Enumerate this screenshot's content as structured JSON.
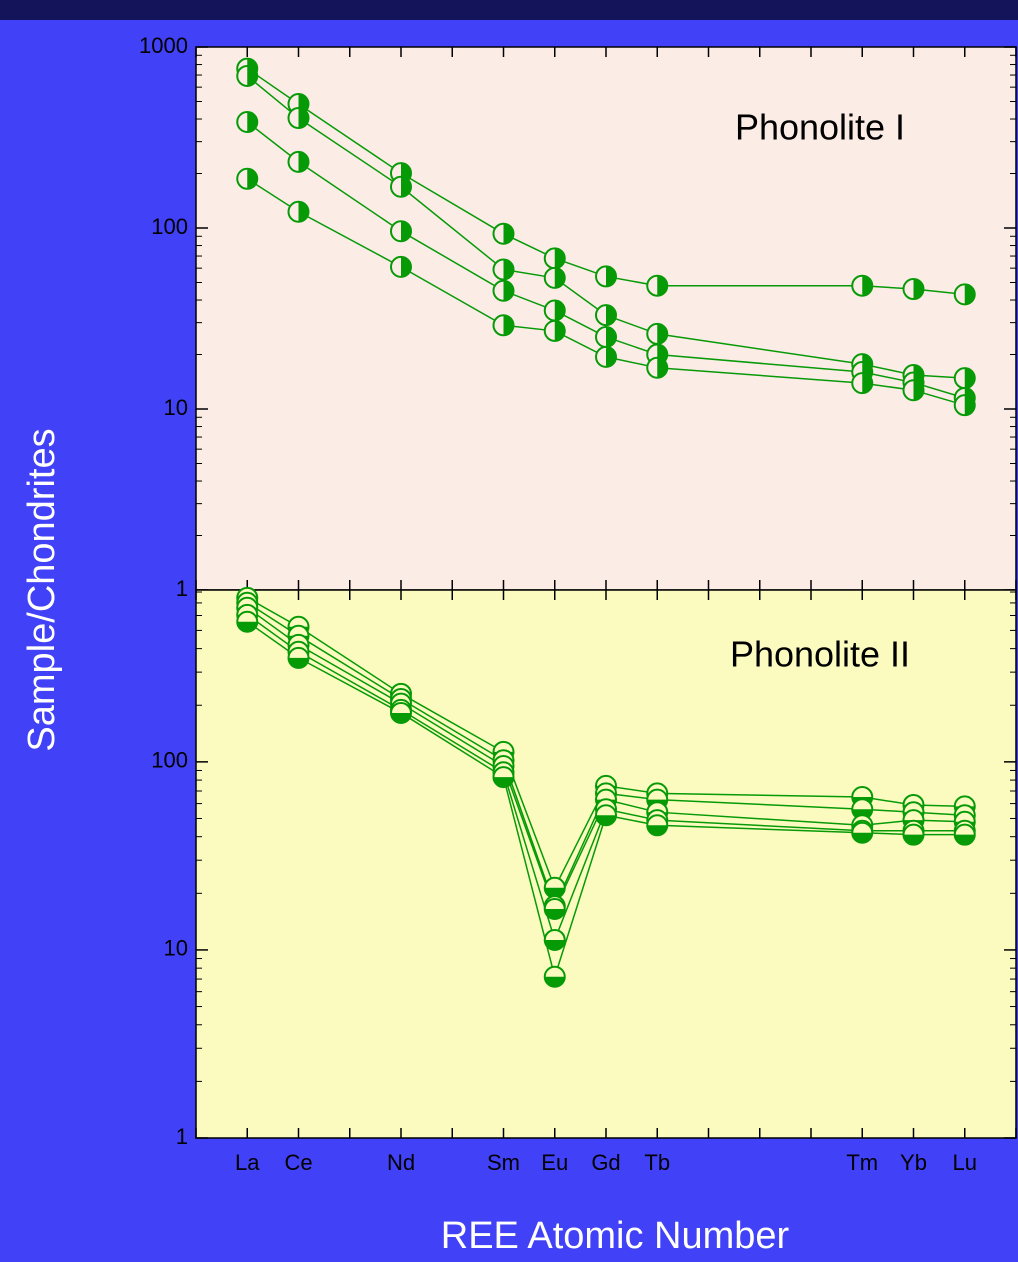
{
  "chart_data": [
    {
      "type": "line",
      "title": "Phonolite I",
      "ylabel": "Sample/Chondrites",
      "log_y": true,
      "background": "#fbece6",
      "color": "#079a07",
      "marker_fill": "right",
      "x": [
        57,
        58,
        60,
        62,
        63,
        64,
        65,
        69,
        70,
        71
      ],
      "xlim": [
        56,
        72
      ],
      "xminorticks": [
        56,
        57,
        58,
        59,
        60,
        61,
        62,
        63,
        64,
        65,
        66,
        67,
        68,
        69,
        70,
        71,
        72
      ],
      "ylim": [
        1,
        1000
      ],
      "yticks": [
        1,
        10,
        100,
        1000
      ],
      "series": [
        {
          "values": [
            760,
            484,
            201,
            93,
            68,
            54,
            48,
            48,
            46,
            43
          ]
        },
        {
          "values": [
            692,
            405,
            169,
            59,
            53,
            33,
            26,
            17.7,
            15.4,
            14.8
          ]
        },
        {
          "values": [
            385,
            232,
            96,
            45,
            35,
            25,
            20,
            16,
            14,
            11.5
          ]
        },
        {
          "values": [
            187,
            123,
            61,
            29,
            27,
            19.4,
            16.9,
            13.9,
            12.7,
            10.5
          ]
        }
      ]
    },
    {
      "type": "line",
      "title": "Phonolite II",
      "xlabel": "REE Atomic Number",
      "log_y": true,
      "background": "#fbfbc0",
      "color": "#079a07",
      "marker_fill": "bottom",
      "x": [
        57,
        58,
        60,
        62,
        63,
        64,
        65,
        69,
        70,
        71
      ],
      "xlim": [
        56,
        72
      ],
      "xticks": [
        {
          "value": 57,
          "label": "La"
        },
        {
          "value": 58,
          "label": "Ce"
        },
        {
          "value": 60,
          "label": "Nd"
        },
        {
          "value": 62,
          "label": "Sm"
        },
        {
          "value": 63,
          "label": "Eu"
        },
        {
          "value": 64,
          "label": "Gd"
        },
        {
          "value": 65,
          "label": "Tb"
        },
        {
          "value": 69,
          "label": "Tm"
        },
        {
          "value": 70,
          "label": "Yb"
        },
        {
          "value": 71,
          "label": "Lu"
        }
      ],
      "xminorticks": [
        56,
        59,
        61,
        66,
        67,
        68,
        72
      ],
      "ylim": [
        1,
        820
      ],
      "yticks": [
        1,
        10,
        100
      ],
      "series": [
        {
          "values": [
            745,
            523,
            230,
            113,
            21.4,
            74.5,
            68,
            65,
            59,
            58
          ]
        },
        {
          "values": [
            701,
            468,
            216,
            102,
            17.1,
            68,
            63,
            56,
            54,
            52
          ]
        },
        {
          "values": [
            660,
            419,
            204,
            95,
            16.5,
            63,
            54,
            46,
            49,
            48
          ]
        },
        {
          "values": [
            605,
            385,
            189,
            88,
            11.3,
            56,
            49,
            43,
            43,
            43
          ]
        },
        {
          "values": [
            556,
            357,
            182,
            83,
            7.2,
            52,
            46,
            42,
            41,
            41
          ]
        }
      ]
    }
  ]
}
